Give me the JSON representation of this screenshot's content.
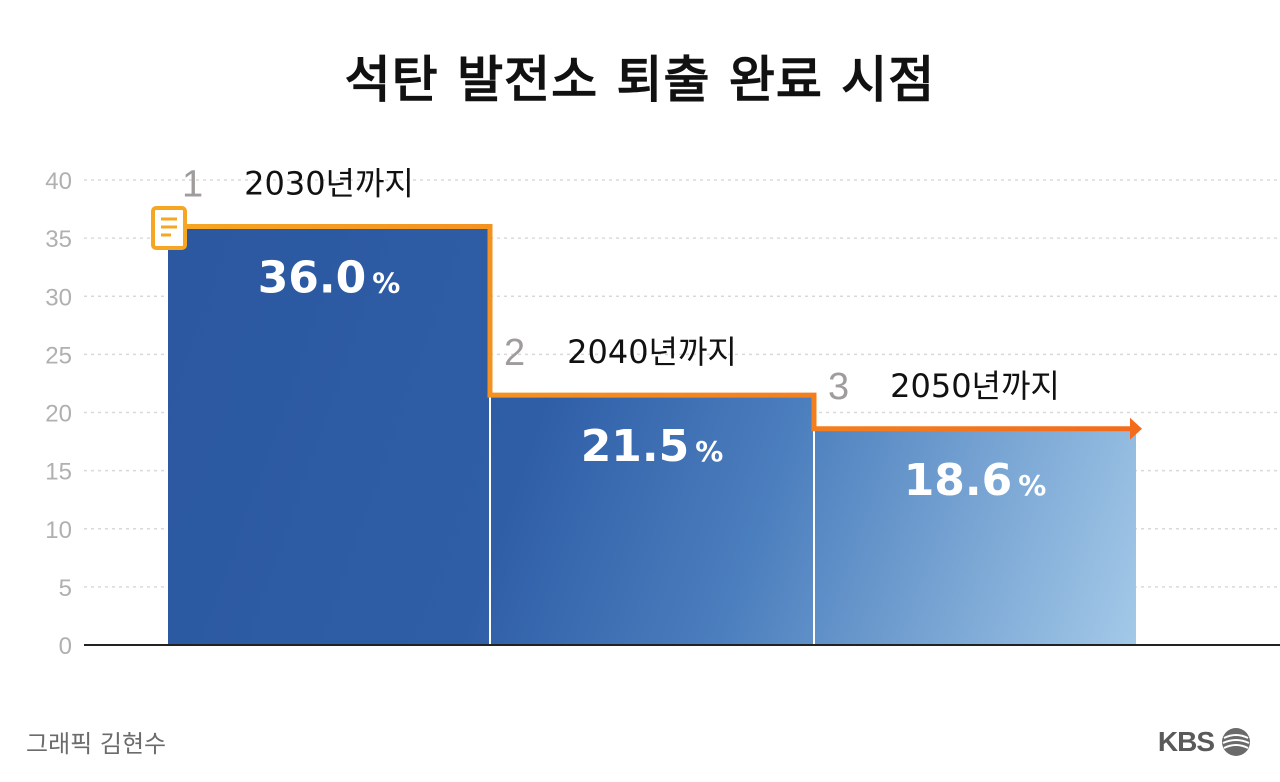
{
  "title": "석탄 발전소 퇴출 완료 시점",
  "credit": "그래픽 김현수",
  "brand": "KBS",
  "colors": {
    "bar_dark": "#2b58a0",
    "bar_mid": "#3c6db1",
    "bar_light": "#a3c9e8",
    "line_start": "#f5a623",
    "line_end": "#f36b1c",
    "number_labels": "#a09c9c",
    "grid": "#d9d9d9"
  },
  "chart_data": {
    "type": "bar",
    "categories": [
      "2030년까지",
      "2040년까지",
      "2050년까지"
    ],
    "index_labels": [
      "1",
      "2",
      "3"
    ],
    "values": [
      36.0,
      21.5,
      18.6
    ],
    "value_labels": [
      "36.0",
      "21.5",
      "18.6"
    ],
    "value_unit": "%",
    "ylim": [
      0,
      40
    ],
    "yticks": [
      0,
      5,
      10,
      15,
      20,
      25,
      30,
      35,
      40
    ],
    "grid": true,
    "step_line": true,
    "icon": "document-icon"
  }
}
